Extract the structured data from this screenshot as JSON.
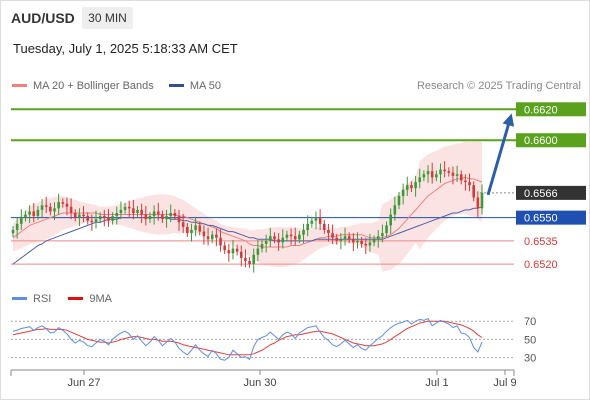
{
  "header": {
    "symbol": "AUD/USD",
    "timeframe": "30 MIN",
    "datetime": "Tuesday, July 1, 2025 5:18:33 AM CET"
  },
  "legend": {
    "ma20_label": "MA 20 + Bollinger Bands",
    "ma50_label": "MA 50",
    "credit": "Research © 2025 Trading Central",
    "rsi_label": "RSI",
    "ma9_label": "9MA"
  },
  "colors": {
    "bullish": "#3a9a3a",
    "bearish": "#d33a3a",
    "bollinger_fill": "#fbdcdc",
    "ma20": "#f08080",
    "ma50": "#5060a8",
    "resistance": "#5aa11e",
    "support_blue": "#1f4fb0",
    "support_red": "#e88a8a",
    "price_tag": "#333333",
    "arrow": "#2b5fa8",
    "rsi_line": "#5b8fe0",
    "rsi_ma": "#e04040"
  },
  "chart_data": [
    {
      "type": "candlestick",
      "title": "AUD/USD",
      "timeframe": "30 MIN",
      "x_tick_labels": [
        "Jun 27",
        "Jun 30",
        "Jul 1",
        "Jul 9"
      ],
      "ylim": [
        0.6511,
        0.6626
      ],
      "levels": [
        {
          "value": 0.662,
          "label": "0.6620",
          "kind": "resistance"
        },
        {
          "value": 0.66,
          "label": "0.6600",
          "kind": "resistance"
        },
        {
          "value": 0.6566,
          "label": "0.6566",
          "kind": "current"
        },
        {
          "value": 0.655,
          "label": "0.6550",
          "kind": "support-pivot"
        },
        {
          "value": 0.6535,
          "label": "0.6535",
          "kind": "support"
        },
        {
          "value": 0.652,
          "label": "0.6520",
          "kind": "support"
        }
      ],
      "close": [
        0.6542,
        0.6546,
        0.655,
        0.6552,
        0.6554,
        0.6551,
        0.6555,
        0.6558,
        0.6557,
        0.6554,
        0.6556,
        0.656,
        0.6559,
        0.6557,
        0.6553,
        0.655,
        0.6552,
        0.6551,
        0.6548,
        0.6547,
        0.6549,
        0.6551,
        0.655,
        0.6548,
        0.6551,
        0.6553,
        0.6555,
        0.6557,
        0.6556,
        0.6553,
        0.6555,
        0.6552,
        0.6549,
        0.6551,
        0.6554,
        0.6552,
        0.6549,
        0.6551,
        0.6553,
        0.6551,
        0.6547,
        0.6544,
        0.654,
        0.6542,
        0.6545,
        0.6541,
        0.6538,
        0.6536,
        0.6539,
        0.6537,
        0.6532,
        0.6529,
        0.6527,
        0.653,
        0.6528,
        0.6524,
        0.6522,
        0.652,
        0.6526,
        0.653,
        0.6533,
        0.6535,
        0.6538,
        0.6536,
        0.6534,
        0.6537,
        0.6539,
        0.6538,
        0.6536,
        0.6539,
        0.6542,
        0.6546,
        0.6548,
        0.655,
        0.6546,
        0.6542,
        0.654,
        0.6537,
        0.6535,
        0.6536,
        0.6538,
        0.6536,
        0.6534,
        0.6535,
        0.6533,
        0.6532,
        0.6534,
        0.6536,
        0.6538,
        0.654,
        0.6545,
        0.6552,
        0.6558,
        0.6564,
        0.6568,
        0.6571,
        0.6569,
        0.6573,
        0.6576,
        0.6578,
        0.658,
        0.6576,
        0.6578,
        0.6581,
        0.658,
        0.6579,
        0.6577,
        0.6578,
        0.6574,
        0.6573,
        0.6571,
        0.6563,
        0.6556,
        0.6566
      ],
      "ma20": [
        0.6537,
        0.6539,
        0.6541,
        0.6543,
        0.6545,
        0.6546,
        0.6547,
        0.6548,
        0.6549,
        0.655,
        0.6551,
        0.6552,
        0.6553,
        0.6553,
        0.6553,
        0.6553,
        0.6553,
        0.6553,
        0.6553,
        0.6553,
        0.6553,
        0.6552,
        0.6552,
        0.6552,
        0.6552,
        0.6552,
        0.6552,
        0.6552,
        0.6552,
        0.6552,
        0.6552,
        0.6552,
        0.6552,
        0.6552,
        0.6552,
        0.6552,
        0.6552,
        0.6552,
        0.6552,
        0.6552,
        0.6551,
        0.6551,
        0.655,
        0.6549,
        0.6548,
        0.6547,
        0.6546,
        0.6545,
        0.6544,
        0.6543,
        0.6541,
        0.654,
        0.6539,
        0.6538,
        0.6537,
        0.6536,
        0.6535,
        0.6533,
        0.6532,
        0.6532,
        0.6531,
        0.6531,
        0.6531,
        0.6531,
        0.6531,
        0.6531,
        0.6531,
        0.6532,
        0.6532,
        0.6532,
        0.6533,
        0.6534,
        0.6535,
        0.6536,
        0.6537,
        0.6537,
        0.6538,
        0.6538,
        0.6538,
        0.6539,
        0.6539,
        0.6539,
        0.6539,
        0.6539,
        0.6539,
        0.6538,
        0.6537,
        0.6537,
        0.6537,
        0.6537,
        0.6538,
        0.6539,
        0.6541,
        0.6543,
        0.6546,
        0.6549,
        0.6552,
        0.6555,
        0.6558,
        0.6561,
        0.6564,
        0.6566,
        0.6568,
        0.657,
        0.6572,
        0.6573,
        0.6574,
        0.6575,
        0.6575,
        0.6576,
        0.6575,
        0.6575,
        0.6574,
        0.6573
      ],
      "ma50": [
        0.652,
        0.6522,
        0.6524,
        0.6526,
        0.6528,
        0.653,
        0.6532,
        0.6533,
        0.6535,
        0.6536,
        0.6537,
        0.6538,
        0.6539,
        0.654,
        0.6541,
        0.6542,
        0.6543,
        0.6544,
        0.6545,
        0.6546,
        0.6547,
        0.6547,
        0.6548,
        0.6549,
        0.6549,
        0.6549,
        0.655,
        0.655,
        0.655,
        0.655,
        0.655,
        0.655,
        0.655,
        0.655,
        0.655,
        0.655,
        0.655,
        0.655,
        0.6549,
        0.6549,
        0.6549,
        0.6548,
        0.6548,
        0.6547,
        0.6547,
        0.6546,
        0.6546,
        0.6545,
        0.6545,
        0.6544,
        0.6543,
        0.6542,
        0.6541,
        0.6541,
        0.654,
        0.6539,
        0.6538,
        0.6537,
        0.6537,
        0.6536,
        0.6536,
        0.6536,
        0.6536,
        0.6535,
        0.6535,
        0.6535,
        0.6535,
        0.6535,
        0.6535,
        0.6535,
        0.6535,
        0.6535,
        0.6535,
        0.6536,
        0.6536,
        0.6536,
        0.6536,
        0.6536,
        0.6536,
        0.6536,
        0.6536,
        0.6536,
        0.6536,
        0.6536,
        0.6536,
        0.6536,
        0.6536,
        0.6536,
        0.6536,
        0.6536,
        0.6537,
        0.6538,
        0.6539,
        0.654,
        0.6541,
        0.6542,
        0.6543,
        0.6544,
        0.6545,
        0.6546,
        0.6547,
        0.6548,
        0.6549,
        0.655,
        0.6551,
        0.6552,
        0.6553,
        0.6553,
        0.6554,
        0.6555,
        0.6555,
        0.6556,
        0.6556,
        0.6557
      ],
      "projection": {
        "from": 0.6566,
        "to": 0.662
      }
    },
    {
      "type": "line",
      "title": "RSI",
      "ylim": [
        25,
        78
      ],
      "y_tick_labels": [
        "70",
        "50",
        "30"
      ],
      "y_ticks": [
        70,
        50,
        30
      ],
      "series": [
        {
          "name": "RSI",
          "values": [
            59,
            60,
            62,
            63,
            64,
            60,
            63,
            65,
            62,
            57,
            58,
            63,
            60,
            56,
            50,
            46,
            49,
            47,
            43,
            42,
            46,
            50,
            48,
            44,
            50,
            54,
            57,
            59,
            56,
            50,
            54,
            48,
            43,
            47,
            53,
            49,
            43,
            47,
            51,
            47,
            40,
            36,
            33,
            38,
            44,
            38,
            34,
            31,
            38,
            34,
            28,
            27,
            30,
            38,
            34,
            30,
            31,
            28,
            42,
            50,
            52,
            54,
            58,
            54,
            50,
            55,
            58,
            56,
            51,
            57,
            60,
            63,
            64,
            65,
            58,
            52,
            49,
            44,
            42,
            45,
            49,
            45,
            41,
            44,
            40,
            38,
            43,
            47,
            51,
            54,
            59,
            63,
            66,
            68,
            69,
            71,
            67,
            70,
            72,
            71,
            73,
            65,
            68,
            71,
            69,
            67,
            63,
            65,
            57,
            56,
            52,
            41,
            36,
            47
          ]
        },
        {
          "name": "9MA",
          "values": [
            55,
            56,
            57,
            58,
            59,
            60,
            61,
            61,
            62,
            61,
            61,
            61,
            61,
            60,
            58,
            56,
            54,
            52,
            50,
            49,
            48,
            47,
            47,
            46,
            47,
            48,
            50,
            51,
            52,
            53,
            53,
            52,
            51,
            50,
            50,
            49,
            48,
            48,
            48,
            47,
            46,
            44,
            43,
            42,
            41,
            40,
            39,
            38,
            37,
            36,
            35,
            34,
            33,
            33,
            33,
            33,
            33,
            33,
            34,
            36,
            38,
            41,
            44,
            46,
            49,
            51,
            53,
            54,
            55,
            55,
            56,
            57,
            58,
            59,
            59,
            58,
            57,
            56,
            54,
            52,
            50,
            48,
            46,
            45,
            44,
            43,
            43,
            43,
            44,
            45,
            47,
            50,
            53,
            56,
            59,
            62,
            64,
            66,
            68,
            69,
            70,
            70,
            70,
            70,
            70,
            69,
            68,
            67,
            66,
            64,
            62,
            59,
            55,
            52
          ]
        }
      ]
    }
  ]
}
